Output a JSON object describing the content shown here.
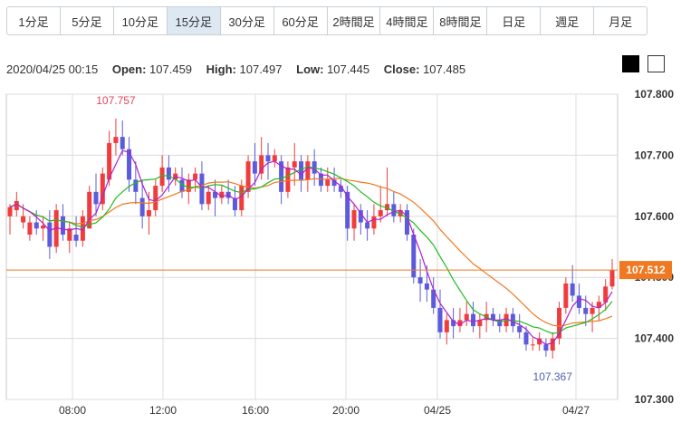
{
  "tabs": [
    {
      "label": "1分足",
      "active": false
    },
    {
      "label": "5分足",
      "active": false
    },
    {
      "label": "10分足",
      "active": false
    },
    {
      "label": "15分足",
      "active": true
    },
    {
      "label": "30分足",
      "active": false
    },
    {
      "label": "60分足",
      "active": false
    },
    {
      "label": "2時間足",
      "active": false
    },
    {
      "label": "4時間足",
      "active": false
    },
    {
      "label": "8時間足",
      "active": false
    },
    {
      "label": "日足",
      "active": false
    },
    {
      "label": "週足",
      "active": false
    },
    {
      "label": "月足",
      "active": false
    }
  ],
  "ohlc": {
    "datetime": "2020/04/25 00:15",
    "open_label": "Open:",
    "open": "107.459",
    "high_label": "High:",
    "high": "107.497",
    "low_label": "Low:",
    "low": "107.445",
    "close_label": "Close:",
    "close": "107.485"
  },
  "colors": {
    "up": "#f03c3c",
    "down": "#5b5bdc",
    "ma_short": "#b020d0",
    "ma_mid": "#22bb22",
    "ma_long": "#f07820",
    "current_price_line": "#f07820",
    "current_price_box": "#f07820"
  },
  "chart_data": {
    "type": "candlestick",
    "y_range": [
      107.3,
      107.8
    ],
    "y_ticks": [
      "107.800",
      "107.700",
      "107.600",
      "107.500",
      "107.400",
      "107.300"
    ],
    "x_ticks": [
      "08:00",
      "12:00",
      "16:00",
      "20:00",
      "04/25",
      "04/27"
    ],
    "grid": true,
    "current_price": "107.512",
    "annotations": [
      {
        "text": "107.757",
        "kind": "high"
      },
      {
        "text": "107.367",
        "kind": "low"
      }
    ],
    "candles": [
      [
        107.6,
        107.62,
        107.57,
        107.615
      ],
      [
        107.61,
        107.64,
        107.6,
        107.625
      ],
      [
        107.59,
        107.62,
        107.58,
        107.6
      ],
      [
        107.57,
        107.6,
        107.56,
        107.59
      ],
      [
        107.59,
        107.61,
        107.57,
        107.58
      ],
      [
        107.58,
        107.6,
        107.56,
        107.585
      ],
      [
        107.59,
        107.61,
        107.53,
        107.55
      ],
      [
        107.55,
        107.62,
        107.54,
        107.61
      ],
      [
        107.6,
        107.62,
        107.56,
        107.57
      ],
      [
        107.56,
        107.59,
        107.54,
        107.58
      ],
      [
        107.57,
        107.6,
        107.55,
        107.56
      ],
      [
        107.56,
        107.61,
        107.55,
        107.6
      ],
      [
        107.58,
        107.65,
        107.58,
        107.64
      ],
      [
        107.64,
        107.67,
        107.6,
        107.62
      ],
      [
        107.62,
        107.68,
        107.61,
        107.67
      ],
      [
        107.66,
        107.74,
        107.65,
        107.72
      ],
      [
        107.72,
        107.76,
        107.7,
        107.73
      ],
      [
        107.73,
        107.757,
        107.7,
        107.71
      ],
      [
        107.71,
        107.73,
        107.64,
        107.66
      ],
      [
        107.66,
        107.69,
        107.62,
        107.64
      ],
      [
        107.63,
        107.66,
        107.58,
        107.6
      ],
      [
        107.6,
        107.64,
        107.57,
        107.61
      ],
      [
        107.61,
        107.66,
        107.6,
        107.65
      ],
      [
        107.65,
        107.7,
        107.64,
        107.68
      ],
      [
        107.68,
        107.7,
        107.64,
        107.66
      ],
      [
        107.66,
        107.68,
        107.65,
        107.67
      ],
      [
        107.66,
        107.68,
        107.63,
        107.64
      ],
      [
        107.64,
        107.67,
        107.62,
        107.66
      ],
      [
        107.66,
        107.68,
        107.64,
        107.67
      ],
      [
        107.67,
        107.69,
        107.61,
        107.62
      ],
      [
        107.62,
        107.65,
        107.61,
        107.64
      ],
      [
        107.64,
        107.66,
        107.6,
        107.63
      ],
      [
        107.63,
        107.65,
        107.62,
        107.64
      ],
      [
        107.64,
        107.66,
        107.62,
        107.63
      ],
      [
        107.63,
        107.65,
        107.6,
        107.61
      ],
      [
        107.61,
        107.66,
        107.6,
        107.65
      ],
      [
        107.64,
        107.7,
        107.63,
        107.69
      ],
      [
        107.69,
        107.72,
        107.65,
        107.67
      ],
      [
        107.67,
        107.73,
        107.66,
        107.7
      ],
      [
        107.7,
        107.72,
        107.66,
        107.69
      ],
      [
        107.69,
        107.71,
        107.68,
        107.7
      ],
      [
        107.69,
        107.7,
        107.62,
        107.64
      ],
      [
        107.64,
        107.69,
        107.63,
        107.68
      ],
      [
        107.68,
        107.72,
        107.65,
        107.69
      ],
      [
        107.69,
        107.7,
        107.64,
        107.66
      ],
      [
        107.66,
        107.7,
        107.64,
        107.69
      ],
      [
        107.69,
        107.71,
        107.65,
        107.67
      ],
      [
        107.67,
        107.68,
        107.64,
        107.65
      ],
      [
        107.65,
        107.68,
        107.64,
        107.66
      ],
      [
        107.66,
        107.68,
        107.64,
        107.65
      ],
      [
        107.65,
        107.66,
        107.63,
        107.64
      ],
      [
        107.64,
        107.65,
        107.56,
        107.58
      ],
      [
        107.58,
        107.62,
        107.56,
        107.61
      ],
      [
        107.61,
        107.62,
        107.57,
        107.59
      ],
      [
        107.59,
        107.61,
        107.56,
        107.58
      ],
      [
        107.58,
        107.62,
        107.57,
        107.6
      ],
      [
        107.6,
        107.65,
        107.59,
        107.61
      ],
      [
        107.61,
        107.68,
        107.6,
        107.62
      ],
      [
        107.62,
        107.64,
        107.59,
        107.6
      ],
      [
        107.6,
        107.62,
        107.59,
        107.61
      ],
      [
        107.61,
        107.62,
        107.56,
        107.57
      ],
      [
        107.57,
        107.58,
        107.49,
        107.5
      ],
      [
        107.5,
        107.53,
        107.46,
        107.49
      ],
      [
        107.49,
        107.52,
        107.46,
        107.48
      ],
      [
        107.48,
        107.5,
        107.44,
        107.45
      ],
      [
        107.45,
        107.48,
        107.4,
        107.41
      ],
      [
        107.41,
        107.44,
        107.39,
        107.43
      ],
      [
        107.43,
        107.45,
        107.4,
        107.42
      ],
      [
        107.42,
        107.45,
        107.41,
        107.43
      ],
      [
        107.43,
        107.46,
        107.42,
        107.44
      ],
      [
        107.44,
        107.46,
        107.41,
        107.42
      ],
      [
        107.42,
        107.44,
        107.4,
        107.43
      ],
      [
        107.43,
        107.46,
        107.41,
        107.44
      ],
      [
        107.44,
        107.45,
        107.42,
        107.43
      ],
      [
        107.43,
        107.44,
        107.41,
        107.42
      ],
      [
        107.42,
        107.45,
        107.41,
        107.44
      ],
      [
        107.44,
        107.45,
        107.41,
        107.42
      ],
      [
        107.42,
        107.44,
        107.4,
        107.41
      ],
      [
        107.41,
        107.42,
        107.38,
        107.39
      ],
      [
        107.39,
        107.4,
        107.38,
        107.39
      ],
      [
        107.39,
        107.41,
        107.38,
        107.4
      ],
      [
        107.39,
        107.4,
        107.37,
        107.38
      ],
      [
        107.38,
        107.41,
        107.367,
        107.4
      ],
      [
        107.4,
        107.46,
        107.39,
        107.45
      ],
      [
        107.45,
        107.5,
        107.44,
        107.49
      ],
      [
        107.49,
        107.52,
        107.46,
        107.47
      ],
      [
        107.47,
        107.49,
        107.44,
        107.45
      ],
      [
        107.45,
        107.47,
        107.42,
        107.44
      ],
      [
        107.44,
        107.46,
        107.41,
        107.45
      ],
      [
        107.45,
        107.47,
        107.43,
        107.46
      ],
      [
        107.459,
        107.497,
        107.445,
        107.485
      ],
      [
        107.485,
        107.53,
        107.48,
        107.512
      ]
    ]
  }
}
